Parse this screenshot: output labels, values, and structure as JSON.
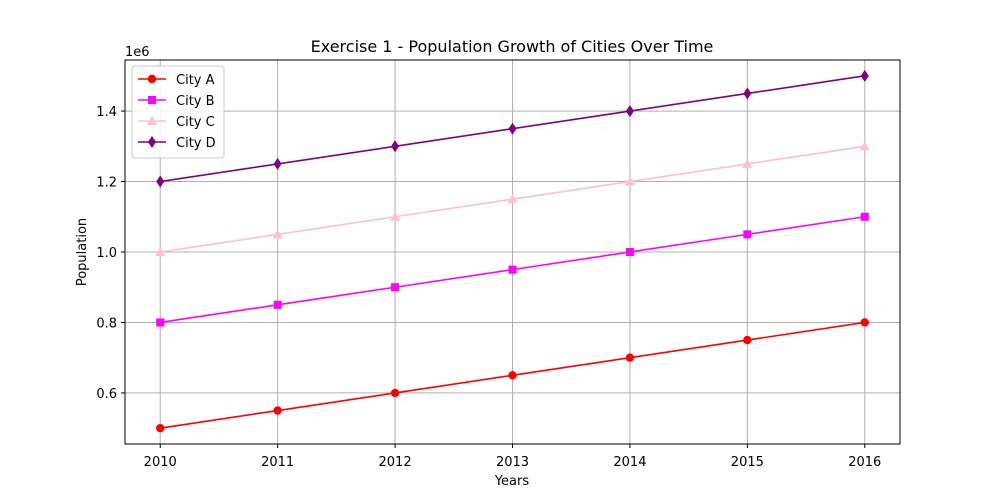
{
  "chart_data": {
    "type": "line",
    "title": "Exercise 1 - Population Growth of Cities Over Time",
    "xlabel": "Years",
    "ylabel": "Population",
    "y_offset_label": "1e6",
    "x": [
      2010,
      2011,
      2012,
      2013,
      2014,
      2015,
      2016
    ],
    "x_ticks": [
      "2010",
      "2011",
      "2012",
      "2013",
      "2014",
      "2015",
      "2016"
    ],
    "y_ticks": [
      {
        "value": 0.6,
        "label": "0.6"
      },
      {
        "value": 0.8,
        "label": "0.8"
      },
      {
        "value": 1.0,
        "label": "1.0"
      },
      {
        "value": 1.2,
        "label": "1.2"
      },
      {
        "value": 1.4,
        "label": "1.4"
      }
    ],
    "xlim": [
      2009.7,
      2016.3
    ],
    "ylim": [
      0.455,
      1.545
    ],
    "grid": true,
    "legend_position": "top-left",
    "series": [
      {
        "name": "City A",
        "color": "#ff0000",
        "marker": "circle",
        "values": [
          0.5,
          0.55,
          0.6,
          0.65,
          0.7,
          0.75,
          0.8
        ]
      },
      {
        "name": "City B",
        "color": "#ff00ff",
        "marker": "square",
        "values": [
          0.8,
          0.85,
          0.9,
          0.95,
          1.0,
          1.05,
          1.1
        ]
      },
      {
        "name": "City C",
        "color": "#ffc0cb",
        "marker": "triangle-up",
        "values": [
          1.0,
          1.05,
          1.1,
          1.15,
          1.2,
          1.25,
          1.3
        ]
      },
      {
        "name": "City D",
        "color": "#800080",
        "marker": "diamond",
        "values": [
          1.2,
          1.25,
          1.3,
          1.35,
          1.4,
          1.45,
          1.5
        ]
      }
    ]
  }
}
